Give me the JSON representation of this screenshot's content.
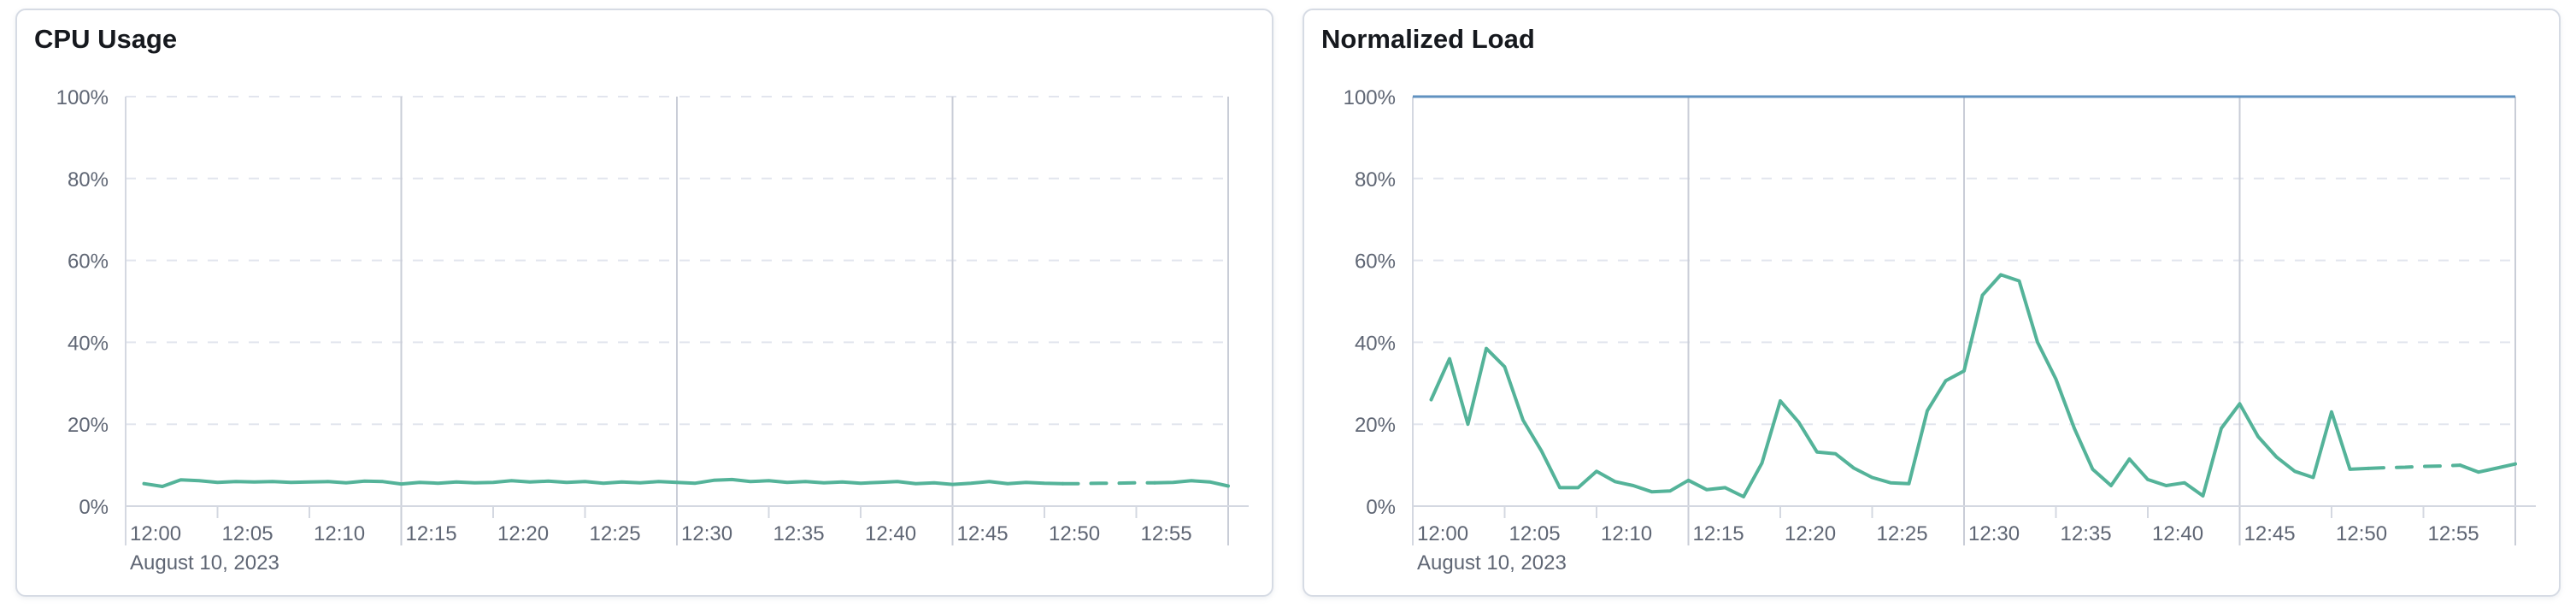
{
  "colors": {
    "series_green": "#54b399",
    "limit_blue": "#6092c0",
    "grid_dashed": "#e2e5ee",
    "grid_solid": "#c9cdd7",
    "axis_line": "#d4d8e1",
    "tick_text": "#5f6674",
    "title_text": "#16191e",
    "panel_border": "#d6dbe4",
    "panel_bg": "#ffffff",
    "page_bg": "#ffffff"
  },
  "chart_data": [
    {
      "type": "line",
      "title": "CPU Usage",
      "x_axis": {
        "date_label": "August 10, 2023",
        "domain_minutes_after_noon": [
          0,
          60
        ],
        "ticks": [
          {
            "label": "12:00",
            "minute": 0
          },
          {
            "label": "12:05",
            "minute": 5
          },
          {
            "label": "12:10",
            "minute": 10
          },
          {
            "label": "12:15",
            "minute": 15
          },
          {
            "label": "12:20",
            "minute": 20
          },
          {
            "label": "12:25",
            "minute": 25
          },
          {
            "label": "12:30",
            "minute": 30
          },
          {
            "label": "12:35",
            "minute": 35
          },
          {
            "label": "12:40",
            "minute": 40
          },
          {
            "label": "12:45",
            "minute": 45
          },
          {
            "label": "12:50",
            "minute": 50
          },
          {
            "label": "12:55",
            "minute": 55
          }
        ],
        "solid_gridline_minutes": [
          15,
          30,
          45,
          60
        ]
      },
      "y_axis": {
        "range_pct": [
          0,
          100
        ],
        "ticks": [
          {
            "label": "0%",
            "pct": 0
          },
          {
            "label": "20%",
            "pct": 20
          },
          {
            "label": "40%",
            "pct": 40
          },
          {
            "label": "60%",
            "pct": 60
          },
          {
            "label": "80%",
            "pct": 80
          },
          {
            "label": "100%",
            "pct": 100
          }
        ],
        "dashed_gridline_pcts": [
          20,
          40,
          60,
          80,
          100
        ]
      },
      "series": [
        {
          "name": "CPU Usage",
          "color": "#54b399",
          "start_minute": 1,
          "minutes_per_point": 1,
          "dashed_from_minute": 51,
          "dashed_to_minute": 56,
          "values_pct": [
            5.5,
            4.8,
            6.4,
            6.2,
            5.8,
            6.0,
            5.9,
            6.0,
            5.8,
            5.9,
            6.0,
            5.7,
            6.1,
            6.0,
            5.4,
            5.8,
            5.6,
            5.9,
            5.7,
            5.8,
            6.2,
            5.9,
            6.1,
            5.8,
            6.0,
            5.6,
            5.9,
            5.7,
            6.0,
            5.8,
            5.6,
            6.3,
            6.5,
            6.0,
            6.2,
            5.8,
            6.0,
            5.7,
            5.9,
            5.6,
            5.8,
            6.0,
            5.5,
            5.7,
            5.3,
            5.6,
            6.0,
            5.5,
            5.8,
            5.6,
            5.5,
            5.5,
            5.6,
            5.6,
            5.7,
            5.7,
            5.8,
            6.2,
            5.9,
            4.9
          ]
        }
      ]
    },
    {
      "type": "line",
      "title": "Normalized Load",
      "x_axis": {
        "date_label": "August 10, 2023",
        "domain_minutes_after_noon": [
          0,
          60
        ],
        "ticks": [
          {
            "label": "12:00",
            "minute": 0
          },
          {
            "label": "12:05",
            "minute": 5
          },
          {
            "label": "12:10",
            "minute": 10
          },
          {
            "label": "12:15",
            "minute": 15
          },
          {
            "label": "12:20",
            "minute": 20
          },
          {
            "label": "12:25",
            "minute": 25
          },
          {
            "label": "12:30",
            "minute": 30
          },
          {
            "label": "12:35",
            "minute": 35
          },
          {
            "label": "12:40",
            "minute": 40
          },
          {
            "label": "12:45",
            "minute": 45
          },
          {
            "label": "12:50",
            "minute": 50
          },
          {
            "label": "12:55",
            "minute": 55
          }
        ],
        "solid_gridline_minutes": [
          15,
          30,
          45,
          60
        ]
      },
      "y_axis": {
        "range_pct": [
          0,
          100
        ],
        "ticks": [
          {
            "label": "0%",
            "pct": 0
          },
          {
            "label": "20%",
            "pct": 20
          },
          {
            "label": "40%",
            "pct": 40
          },
          {
            "label": "60%",
            "pct": 60
          },
          {
            "label": "80%",
            "pct": 80
          },
          {
            "label": "100%",
            "pct": 100
          }
        ],
        "dashed_gridline_pcts": [
          20,
          40,
          60,
          80,
          100
        ]
      },
      "series": [
        {
          "name": "Normalized Load",
          "color": "#54b399",
          "start_minute": 1,
          "minutes_per_point": 1,
          "dashed_from_minute": 52,
          "dashed_to_minute": 57,
          "values_pct": [
            26,
            36,
            20,
            38.5,
            34,
            21,
            13.5,
            4.5,
            4.5,
            8.5,
            6,
            5,
            3.5,
            3.7,
            6.3,
            4,
            4.5,
            2.3,
            10.5,
            25.7,
            20.5,
            13.2,
            12.8,
            9.3,
            7,
            5.7,
            5.5,
            23.3,
            30.6,
            33,
            51.5,
            56.5,
            55,
            40,
            31,
            19,
            9,
            5,
            11.5,
            6.5,
            5,
            5.7,
            2.5,
            19,
            25,
            17,
            12,
            8.5,
            7,
            23,
            9,
            9.2,
            9.4,
            9.5,
            9.7,
            9.8,
            10,
            8.3,
            9.3,
            10.3
          ]
        },
        {
          "name": "100% limit",
          "color": "#6092c0",
          "constant_pct": 100
        }
      ]
    }
  ]
}
